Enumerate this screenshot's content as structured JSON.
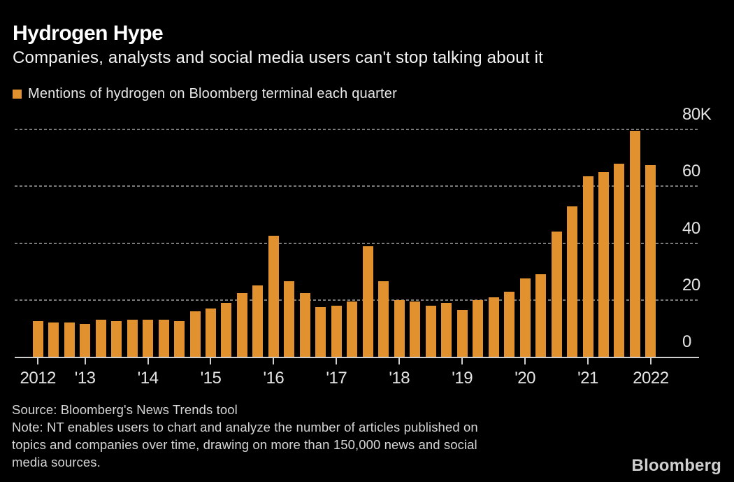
{
  "header": {
    "title": "Hydrogen Hype",
    "subtitle": "Companies, analysts and social media users can't stop talking about it"
  },
  "legend": {
    "label": "Mentions of hydrogen on Bloomberg terminal each quarter",
    "swatch_color": "#E2912F"
  },
  "chart_data": {
    "type": "bar",
    "title": "Hydrogen Hype",
    "series_label": "Mentions of hydrogen on Bloomberg terminal each quarter",
    "unit": "thousands of mentions per quarter",
    "x": [
      "Q2 2012",
      "Q3 2012",
      "Q4 2012",
      "Q1 2013",
      "Q2 2013",
      "Q3 2013",
      "Q4 2013",
      "Q1 2014",
      "Q2 2014",
      "Q3 2014",
      "Q4 2014",
      "Q1 2015",
      "Q2 2015",
      "Q3 2015",
      "Q4 2015",
      "Q1 2016",
      "Q2 2016",
      "Q3 2016",
      "Q4 2016",
      "Q1 2017",
      "Q2 2017",
      "Q3 2017",
      "Q4 2017",
      "Q1 2018",
      "Q2 2018",
      "Q3 2018",
      "Q4 2018",
      "Q1 2019",
      "Q2 2019",
      "Q3 2019",
      "Q4 2019",
      "Q1 2020",
      "Q2 2020",
      "Q3 2020",
      "Q4 2020",
      "Q1 2021",
      "Q2 2021",
      "Q3 2021",
      "Q4 2021",
      "Q1 2022"
    ],
    "values": [
      12.5,
      12,
      12,
      11.5,
      13,
      12.5,
      13,
      13,
      13,
      12.5,
      16,
      17,
      19,
      22.5,
      25,
      42.5,
      26.5,
      22.5,
      17.5,
      18,
      19.5,
      39,
      26.5,
      20,
      19.5,
      18,
      19,
      16.5,
      20,
      21,
      23,
      27.5,
      29,
      44,
      53,
      63.5,
      65,
      68,
      79.5,
      67.5
    ],
    "ylim": [
      0,
      80
    ],
    "yticks": [
      80,
      60,
      40,
      20,
      0
    ],
    "ytick_labels": [
      "80K",
      "60",
      "40",
      "20",
      "0"
    ],
    "xtick_labels": [
      "2012",
      "'13",
      "'14",
      "'15",
      "'16",
      "'17",
      "'18",
      "'19",
      "'20",
      "'21",
      "2022"
    ],
    "xticks_at_bar": [
      0,
      3,
      7,
      11,
      15,
      19,
      23,
      27,
      31,
      35,
      39
    ],
    "grid": "horizontal-dashed",
    "legend_position": "top-left",
    "yaxis_side": "right",
    "bar_color": "#E2912F",
    "background": "#000000"
  },
  "colors": {
    "accent_orange": "#E2912F",
    "background": "#000000",
    "title_text": "#FFFFFF",
    "axis_text": "#E4E4E4",
    "gridline": "#8F8F8F",
    "axis_line": "#CFCFCF",
    "footer_text": "#D6D6D6",
    "logo_text": "#CFCFCF"
  },
  "footer": {
    "source": "Source: Bloomberg's News Trends tool",
    "note_lines": [
      "Note: NT enables users to chart and analyze the number of articles published on",
      "topics and companies over time, drawing on more than 150,000 news and social",
      "media sources."
    ],
    "logo": "Bloomberg"
  }
}
